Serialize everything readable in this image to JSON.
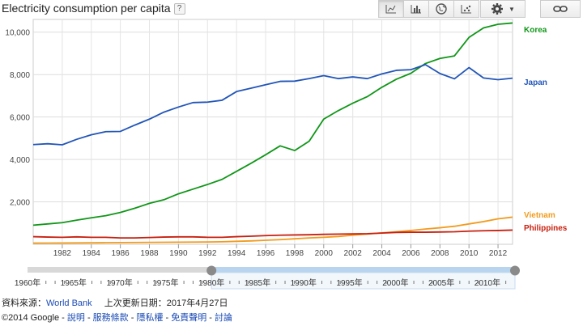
{
  "header": {
    "title": "Electricity consumption per capita",
    "help_label": "?"
  },
  "toolbar": {
    "chart_types": [
      {
        "name": "line-chart-button",
        "icon": "line-chart-icon"
      },
      {
        "name": "bar-chart-button",
        "icon": "bar-chart-icon"
      },
      {
        "name": "map-button",
        "icon": "globe-icon"
      },
      {
        "name": "scatter-chart-button",
        "icon": "scatter-chart-icon"
      }
    ],
    "settings_icon": "gear-icon",
    "link_icon": "link-icon"
  },
  "chart_data": {
    "type": "line",
    "title": "Electricity consumption per capita",
    "xlabel": "",
    "ylabel": "",
    "x": [
      1980,
      1981,
      1982,
      1983,
      1984,
      1985,
      1986,
      1987,
      1988,
      1989,
      1990,
      1991,
      1992,
      1993,
      1994,
      1995,
      1996,
      1997,
      1998,
      1999,
      2000,
      2001,
      2002,
      2003,
      2004,
      2005,
      2006,
      2007,
      2008,
      2009,
      2010,
      2011,
      2012,
      2013
    ],
    "xlim": [
      1980,
      2013
    ],
    "ylim": [
      0,
      10600
    ],
    "x_ticks": [
      1982,
      1984,
      1986,
      1988,
      1990,
      1992,
      1994,
      1996,
      1998,
      2000,
      2002,
      2004,
      2006,
      2008,
      2010,
      2012
    ],
    "y_ticks": [
      2000,
      4000,
      6000,
      8000,
      10000
    ],
    "y_tick_labels": [
      "2,000",
      "4,000",
      "6,000",
      "8,000",
      "10,000"
    ],
    "grid": true,
    "legend": "right-end labels",
    "series": [
      {
        "name": "Korea",
        "color": "#109618",
        "values": [
          900,
          960,
          1020,
          1140,
          1250,
          1350,
          1500,
          1700,
          1930,
          2100,
          2380,
          2600,
          2820,
          3060,
          3440,
          3820,
          4220,
          4640,
          4420,
          4860,
          5900,
          6300,
          6650,
          6960,
          7400,
          7780,
          8060,
          8520,
          8760,
          8880,
          9750,
          10200,
          10370,
          10430
        ]
      },
      {
        "name": "Japan",
        "color": "#2155b8",
        "values": [
          4700,
          4740,
          4690,
          4950,
          5160,
          5310,
          5320,
          5620,
          5900,
          6230,
          6470,
          6680,
          6700,
          6790,
          7200,
          7360,
          7520,
          7680,
          7690,
          7810,
          7950,
          7810,
          7890,
          7810,
          8030,
          8200,
          8230,
          8470,
          8050,
          7800,
          8330,
          7840,
          7760,
          7830
        ]
      },
      {
        "name": "Vietnam",
        "color": "#f29b1d",
        "values": [
          55,
          58,
          60,
          65,
          70,
          75,
          80,
          85,
          90,
          95,
          100,
          105,
          110,
          120,
          140,
          160,
          190,
          220,
          260,
          300,
          330,
          370,
          430,
          480,
          540,
          590,
          650,
          720,
          780,
          850,
          960,
          1070,
          1200,
          1280
        ]
      },
      {
        "name": "Philippines",
        "color": "#c8200f",
        "values": [
          360,
          340,
          330,
          350,
          330,
          330,
          300,
          300,
          320,
          340,
          350,
          350,
          330,
          330,
          360,
          380,
          410,
          430,
          440,
          450,
          470,
          480,
          490,
          500,
          530,
          560,
          570,
          570,
          580,
          590,
          620,
          640,
          650,
          670
        ]
      }
    ],
    "timeline": {
      "labels": [
        "1960年",
        "1965年",
        "1970年",
        "1975年",
        "1980年",
        "1985年",
        "1990年",
        "1995年",
        "2000年",
        "2005年",
        "2010年"
      ],
      "range_start": 1980,
      "range_end": 2013
    }
  },
  "footer": {
    "source_label": "資料來源：",
    "source_link": "World Bank",
    "updated_label": "上次更新日期：2017年4月27日",
    "copyright": "©2014 Google - ",
    "links": [
      "說明",
      "服務條款",
      "隱私權",
      "免責聲明",
      "討論"
    ]
  }
}
